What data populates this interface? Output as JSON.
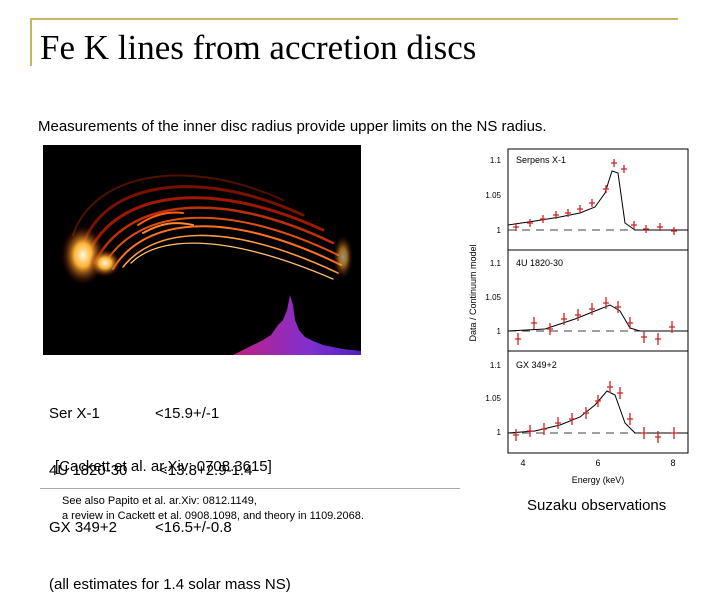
{
  "slide": {
    "title": "Fe K lines from accretion discs",
    "subtitle": "Measurements of the inner disc radius provide upper limits on the NS radius."
  },
  "measurements": [
    {
      "source": "Ser X-1",
      "value": "<15.9+/-1"
    },
    {
      "source": "4U 1820-30",
      "value": "<13.8+2.9-1.4"
    },
    {
      "source": "GX 349+2",
      "value": "<16.5+/-0.8"
    }
  ],
  "note": "(all estimates for 1.4 solar mass NS)",
  "citation": "[Cackett et al. ar.Xiv: 0708.3615]",
  "references": {
    "line1": "See also Papito et al. ar.Xiv: 0812.1149,",
    "line2": "a review in Cackett et al. 0908.1098, and theory in 1109.2068."
  },
  "suzaku_figure": {
    "ylabel": "Data / Continuum model",
    "xlabel": "Energy (keV)",
    "xticks": [
      "4",
      "6",
      "8"
    ],
    "panels": [
      {
        "name": "Serpens X-1",
        "yticks": [
          "1.1",
          "1.05",
          "1"
        ]
      },
      {
        "name": "4U 1820-30",
        "yticks": [
          "1.1",
          "1.05",
          "1"
        ]
      },
      {
        "name": "GX 349+2",
        "yticks": [
          "1.1",
          "1.05",
          "1"
        ]
      }
    ]
  },
  "suzaku_caption": "Suzaku observations",
  "colors": {
    "frame": "#c8b560",
    "data_points": "#d42020"
  }
}
